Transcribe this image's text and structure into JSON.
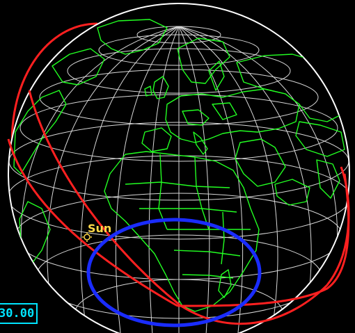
{
  "view": {
    "sun_label": "Sun",
    "readout_value": "30.00"
  },
  "colors": {
    "background": "#000000",
    "globe_grid": "#ffffff",
    "coastlines": "#22ff22",
    "orbit": "#ff2020",
    "coverage_circle": "#1a2cff",
    "sun_marker": "#ffd84a",
    "readout": "#00e5ff"
  },
  "icons": {
    "sun_marker": "sun-icon"
  }
}
